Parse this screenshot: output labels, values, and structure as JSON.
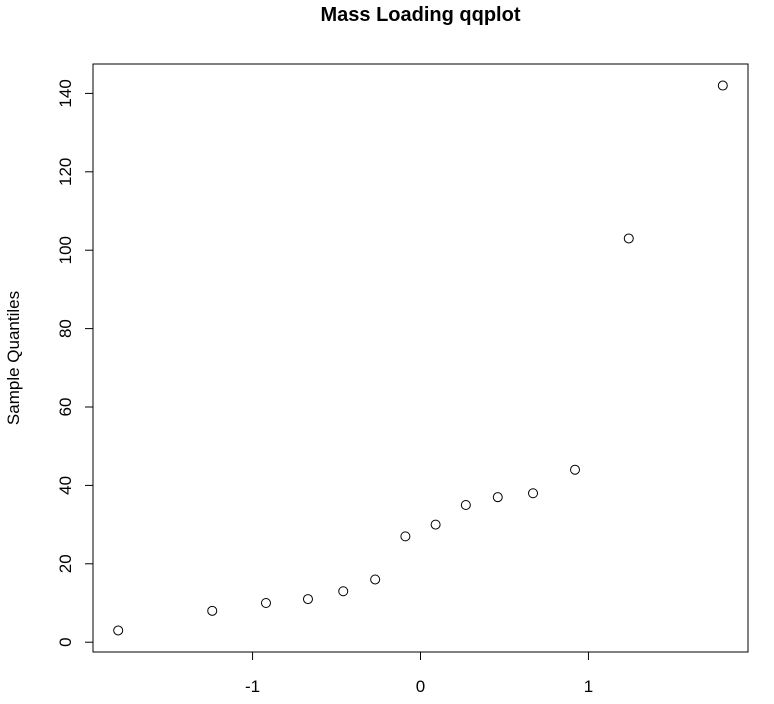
{
  "chart_data": {
    "type": "scatter",
    "title": "Mass Loading qqplot",
    "xlabel": "",
    "ylabel": "Sample Quantiles",
    "xlim": [
      -1.95,
      1.95
    ],
    "ylim": [
      -2.5,
      147.5
    ],
    "x_ticks": [
      -1,
      0,
      1
    ],
    "x_tick_labels": [
      "-1",
      "0",
      "1"
    ],
    "y_ticks": [
      0,
      20,
      40,
      60,
      80,
      100,
      120,
      140
    ],
    "y_tick_labels": [
      "0",
      "20",
      "40",
      "60",
      "80",
      "100",
      "120",
      "140"
    ],
    "grid": false,
    "legend": "none",
    "marker": "open-circle",
    "points": [
      {
        "x": -1.8,
        "y": 3
      },
      {
        "x": -1.24,
        "y": 8
      },
      {
        "x": -0.92,
        "y": 10
      },
      {
        "x": -0.67,
        "y": 11
      },
      {
        "x": -0.46,
        "y": 13
      },
      {
        "x": -0.27,
        "y": 16
      },
      {
        "x": -0.09,
        "y": 27
      },
      {
        "x": 0.09,
        "y": 30
      },
      {
        "x": 0.27,
        "y": 35
      },
      {
        "x": 0.46,
        "y": 37
      },
      {
        "x": 0.67,
        "y": 38
      },
      {
        "x": 0.92,
        "y": 44
      },
      {
        "x": 1.24,
        "y": 103
      },
      {
        "x": 1.8,
        "y": 142
      }
    ]
  }
}
